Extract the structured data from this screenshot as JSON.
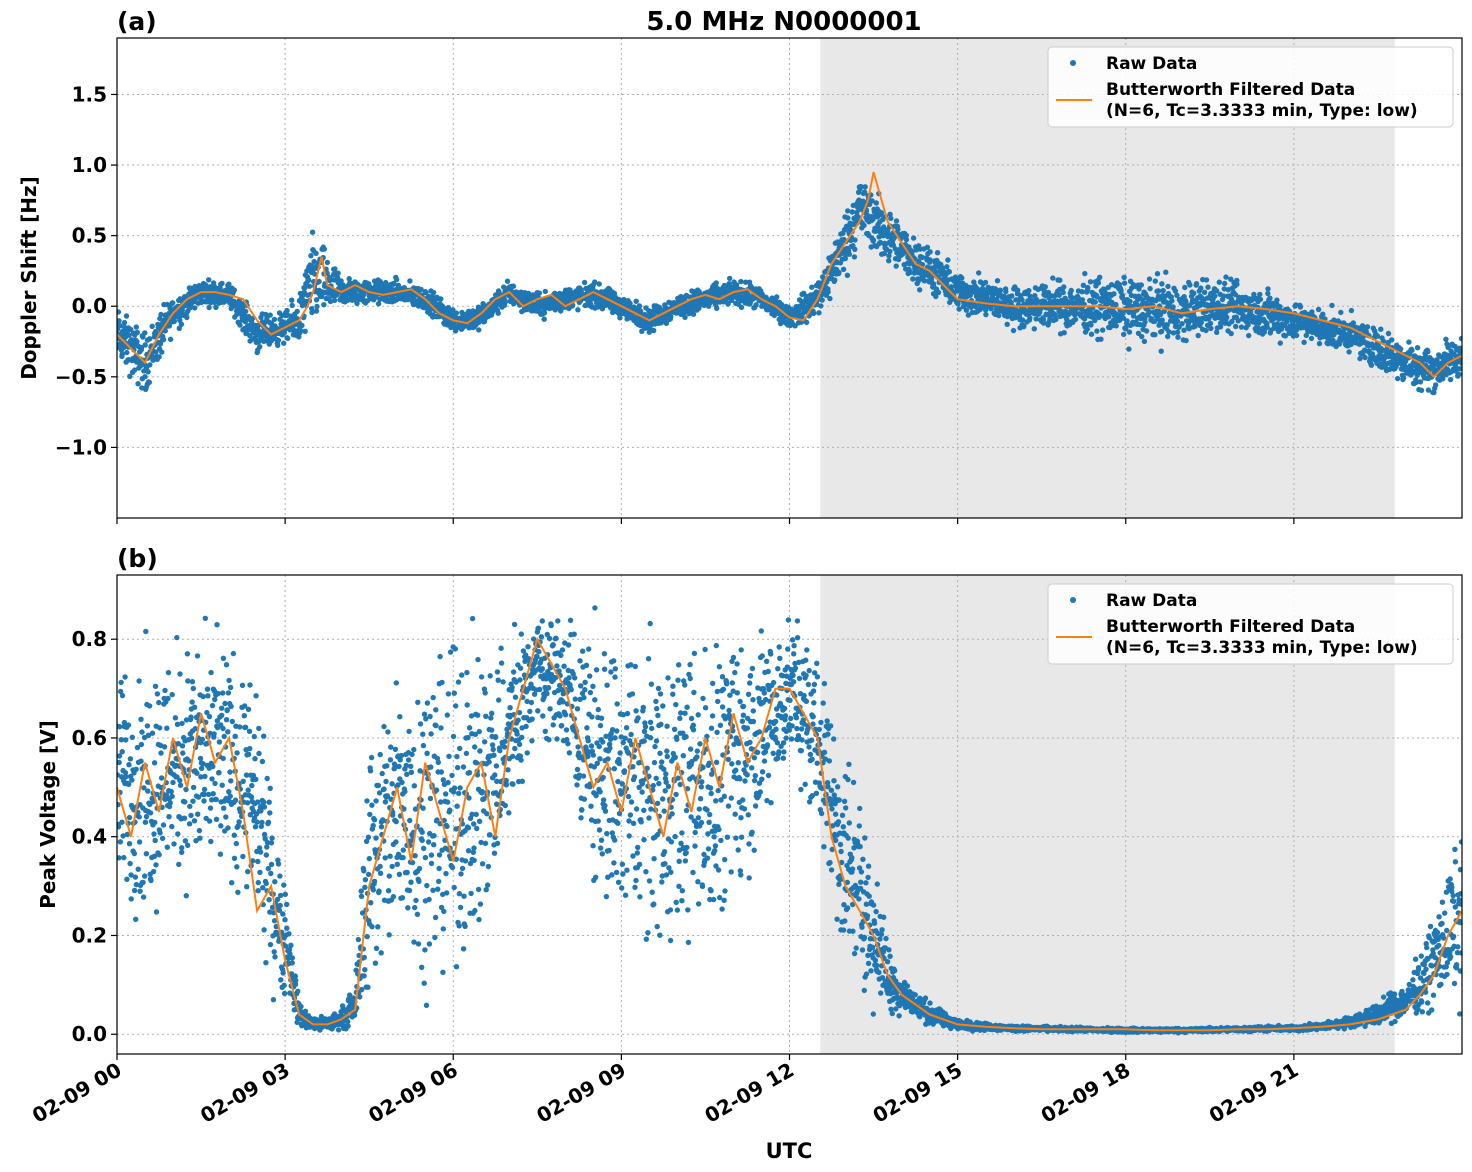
{
  "figure": {
    "title": "5.0 MHz N0000001",
    "xlabel": "UTC"
  },
  "colors": {
    "raw": "#1f77b4",
    "filtered": "#ff7f0e",
    "shade": "#e8e8e8",
    "grid": "#b0b0b0"
  },
  "x_axis": {
    "range_hours": [
      0,
      24
    ],
    "tick_hours": [
      0,
      3,
      6,
      9,
      12,
      15,
      18,
      21
    ],
    "tick_labels": [
      "02-09 00",
      "02-09 03",
      "02-09 06",
      "02-09 09",
      "02-09 12",
      "02-09 15",
      "02-09 18",
      "02-09 21"
    ]
  },
  "night_shading_hours": [
    12.55,
    22.8
  ],
  "legend": {
    "raw_label": "Raw Data",
    "filtered_label_line1": "Butterworth Filtered Data",
    "filtered_label_line2": "(N=6, Tc=3.3333 min, Type: low)"
  },
  "chart_data": [
    {
      "type": "scatter",
      "panel_label": "(a)",
      "ylabel": "Doppler Shift [Hz]",
      "ylim": [
        -1.5,
        1.9
      ],
      "yticks": [
        -1.0,
        -0.5,
        0.0,
        0.5,
        1.0,
        1.5
      ],
      "ytick_labels": [
        "−1.0",
        "−0.5",
        "0.0",
        "0.5",
        "1.0",
        "1.5"
      ],
      "grid": true,
      "legend_position": "top-right",
      "series": [
        {
          "name": "Butterworth Filtered Data",
          "style": "line",
          "x_hours": [
            0.0,
            0.25,
            0.5,
            0.75,
            1.0,
            1.25,
            1.5,
            1.75,
            2.0,
            2.25,
            2.5,
            2.75,
            3.0,
            3.25,
            3.4,
            3.5,
            3.65,
            3.75,
            4.0,
            4.25,
            4.5,
            4.75,
            5.0,
            5.25,
            5.5,
            5.75,
            6.0,
            6.25,
            6.5,
            6.75,
            7.0,
            7.25,
            7.5,
            7.75,
            8.0,
            8.25,
            8.5,
            8.75,
            9.0,
            9.25,
            9.5,
            9.75,
            10.0,
            10.25,
            10.5,
            10.75,
            11.0,
            11.25,
            11.5,
            11.75,
            12.0,
            12.25,
            12.5,
            12.75,
            13.0,
            13.25,
            13.4,
            13.5,
            13.75,
            14.0,
            14.25,
            14.5,
            14.75,
            15.0,
            15.5,
            16.0,
            16.5,
            17.0,
            17.5,
            18.0,
            18.5,
            19.0,
            19.5,
            20.0,
            20.5,
            21.0,
            21.5,
            22.0,
            22.25,
            22.5,
            22.75,
            23.0,
            23.25,
            23.5,
            23.75,
            24.0
          ],
          "values": [
            -0.2,
            -0.3,
            -0.4,
            -0.2,
            -0.05,
            0.05,
            0.1,
            0.1,
            0.08,
            0.05,
            -0.1,
            -0.2,
            -0.15,
            -0.1,
            0.0,
            0.1,
            0.35,
            0.15,
            0.1,
            0.15,
            0.1,
            0.08,
            0.1,
            0.12,
            0.05,
            -0.05,
            -0.1,
            -0.12,
            -0.05,
            0.05,
            0.1,
            0.0,
            0.05,
            0.08,
            0.0,
            0.05,
            0.1,
            0.05,
            0.0,
            -0.05,
            -0.1,
            -0.05,
            0.0,
            0.05,
            0.08,
            0.05,
            0.1,
            0.12,
            0.05,
            0.0,
            -0.08,
            -0.1,
            0.05,
            0.3,
            0.45,
            0.6,
            0.75,
            0.95,
            0.6,
            0.45,
            0.3,
            0.25,
            0.15,
            0.05,
            0.02,
            0.0,
            0.0,
            0.0,
            0.0,
            -0.02,
            0.0,
            -0.05,
            -0.02,
            0.0,
            -0.02,
            -0.05,
            -0.1,
            -0.15,
            -0.2,
            -0.25,
            -0.3,
            -0.35,
            -0.4,
            -0.5,
            -0.4,
            -0.35
          ]
        },
        {
          "name": "Raw Data",
          "style": "points",
          "envelope": {
            "x_hours": [
              0.0,
              0.5,
              1.0,
              1.5,
              2.0,
              2.5,
              3.0,
              3.25,
              3.5,
              3.75,
              4.0,
              4.5,
              5.0,
              5.5,
              6.0,
              6.5,
              7.0,
              7.5,
              8.0,
              8.5,
              9.0,
              9.5,
              10.0,
              10.5,
              11.0,
              11.5,
              12.0,
              12.5,
              13.0,
              13.25,
              13.5,
              14.0,
              14.5,
              15.0,
              15.5,
              16.0,
              16.5,
              17.0,
              17.5,
              18.0,
              18.5,
              19.0,
              19.5,
              20.0,
              20.5,
              21.0,
              21.5,
              22.0,
              22.5,
              23.0,
              23.5,
              24.0
            ],
            "center": [
              -0.2,
              -0.4,
              -0.05,
              0.1,
              0.08,
              -0.2,
              -0.15,
              -0.1,
              0.2,
              0.15,
              0.1,
              0.1,
              0.1,
              0.05,
              -0.1,
              -0.08,
              0.1,
              0.0,
              0.05,
              0.08,
              0.0,
              -0.1,
              0.0,
              0.05,
              0.1,
              0.05,
              -0.08,
              0.05,
              0.45,
              0.7,
              0.6,
              0.4,
              0.25,
              0.1,
              0.05,
              0.0,
              0.0,
              0.0,
              0.0,
              -0.02,
              -0.02,
              -0.05,
              0.0,
              -0.02,
              -0.05,
              -0.1,
              -0.15,
              -0.2,
              -0.3,
              -0.4,
              -0.45,
              -0.35
            ],
            "spread": [
              0.25,
              0.3,
              0.18,
              0.12,
              0.12,
              0.18,
              0.15,
              0.25,
              0.45,
              0.3,
              0.15,
              0.12,
              0.12,
              0.12,
              0.12,
              0.12,
              0.12,
              0.12,
              0.12,
              0.12,
              0.12,
              0.12,
              0.12,
              0.12,
              0.12,
              0.12,
              0.1,
              0.2,
              0.3,
              0.35,
              0.3,
              0.25,
              0.22,
              0.2,
              0.2,
              0.2,
              0.22,
              0.25,
              0.28,
              0.3,
              0.32,
              0.3,
              0.28,
              0.25,
              0.25,
              0.2,
              0.18,
              0.18,
              0.2,
              0.22,
              0.22,
              0.2
            ]
          }
        }
      ]
    },
    {
      "type": "scatter",
      "panel_label": "(b)",
      "ylabel": "Peak Voltage [V]",
      "ylim": [
        -0.04,
        0.93
      ],
      "yticks": [
        0.0,
        0.2,
        0.4,
        0.6,
        0.8
      ],
      "ytick_labels": [
        "0.0",
        "0.2",
        "0.4",
        "0.6",
        "0.8"
      ],
      "grid": true,
      "legend_position": "top-right",
      "series": [
        {
          "name": "Butterworth Filtered Data",
          "style": "line",
          "x_hours": [
            0.0,
            0.25,
            0.5,
            0.75,
            1.0,
            1.25,
            1.5,
            1.75,
            2.0,
            2.25,
            2.5,
            2.75,
            3.0,
            3.25,
            3.5,
            3.75,
            4.0,
            4.25,
            4.5,
            4.75,
            5.0,
            5.25,
            5.5,
            5.75,
            6.0,
            6.25,
            6.5,
            6.75,
            7.0,
            7.25,
            7.5,
            7.75,
            8.0,
            8.25,
            8.5,
            8.75,
            9.0,
            9.25,
            9.5,
            9.75,
            10.0,
            10.25,
            10.5,
            10.75,
            11.0,
            11.25,
            11.5,
            11.75,
            12.0,
            12.25,
            12.5,
            12.75,
            13.0,
            13.25,
            13.5,
            13.75,
            14.0,
            14.5,
            15.0,
            15.5,
            16.0,
            16.5,
            17.0,
            17.5,
            18.0,
            18.5,
            19.0,
            19.5,
            20.0,
            20.5,
            21.0,
            21.5,
            22.0,
            22.5,
            23.0,
            23.25,
            23.5,
            23.75,
            24.0
          ],
          "values": [
            0.5,
            0.4,
            0.55,
            0.45,
            0.6,
            0.5,
            0.65,
            0.55,
            0.6,
            0.45,
            0.25,
            0.3,
            0.15,
            0.04,
            0.02,
            0.02,
            0.03,
            0.05,
            0.3,
            0.4,
            0.5,
            0.35,
            0.55,
            0.45,
            0.35,
            0.5,
            0.55,
            0.4,
            0.6,
            0.7,
            0.8,
            0.75,
            0.7,
            0.6,
            0.5,
            0.55,
            0.45,
            0.6,
            0.5,
            0.4,
            0.55,
            0.45,
            0.6,
            0.5,
            0.65,
            0.55,
            0.6,
            0.7,
            0.7,
            0.65,
            0.6,
            0.4,
            0.3,
            0.25,
            0.2,
            0.12,
            0.08,
            0.04,
            0.02,
            0.015,
            0.012,
            0.01,
            0.01,
            0.01,
            0.01,
            0.008,
            0.008,
            0.008,
            0.01,
            0.01,
            0.012,
            0.015,
            0.02,
            0.03,
            0.05,
            0.08,
            0.12,
            0.2,
            0.25
          ]
        },
        {
          "name": "Raw Data",
          "style": "points",
          "envelope": {
            "x_hours": [
              0.0,
              0.5,
              1.0,
              1.5,
              2.0,
              2.5,
              2.75,
              3.0,
              3.25,
              3.5,
              3.75,
              4.0,
              4.25,
              4.5,
              5.0,
              5.5,
              6.0,
              6.5,
              7.0,
              7.5,
              8.0,
              8.5,
              9.0,
              9.5,
              10.0,
              10.5,
              11.0,
              11.5,
              12.0,
              12.5,
              13.0,
              13.25,
              13.5,
              13.75,
              14.0,
              14.5,
              15.0,
              15.5,
              16.0,
              17.0,
              18.0,
              19.0,
              20.0,
              21.0,
              21.5,
              22.0,
              22.5,
              23.0,
              23.25,
              23.5,
              23.75,
              24.0
            ],
            "center": [
              0.5,
              0.5,
              0.55,
              0.55,
              0.55,
              0.45,
              0.3,
              0.2,
              0.04,
              0.02,
              0.02,
              0.03,
              0.06,
              0.35,
              0.45,
              0.45,
              0.45,
              0.5,
              0.6,
              0.75,
              0.7,
              0.55,
              0.5,
              0.5,
              0.5,
              0.5,
              0.55,
              0.6,
              0.7,
              0.6,
              0.35,
              0.3,
              0.2,
              0.12,
              0.08,
              0.04,
              0.02,
              0.015,
              0.012,
              0.01,
              0.008,
              0.008,
              0.01,
              0.012,
              0.015,
              0.025,
              0.04,
              0.07,
              0.1,
              0.15,
              0.2,
              0.25
            ],
            "spread": [
              0.3,
              0.35,
              0.33,
              0.33,
              0.32,
              0.3,
              0.25,
              0.18,
              0.03,
              0.02,
              0.02,
              0.03,
              0.05,
              0.35,
              0.4,
              0.42,
              0.42,
              0.4,
              0.3,
              0.15,
              0.2,
              0.35,
              0.4,
              0.4,
              0.4,
              0.4,
              0.35,
              0.3,
              0.18,
              0.25,
              0.3,
              0.25,
              0.18,
              0.1,
              0.06,
              0.03,
              0.015,
              0.01,
              0.008,
              0.006,
              0.006,
              0.006,
              0.006,
              0.008,
              0.01,
              0.015,
              0.03,
              0.05,
              0.08,
              0.12,
              0.18,
              0.22
            ]
          }
        }
      ]
    }
  ]
}
